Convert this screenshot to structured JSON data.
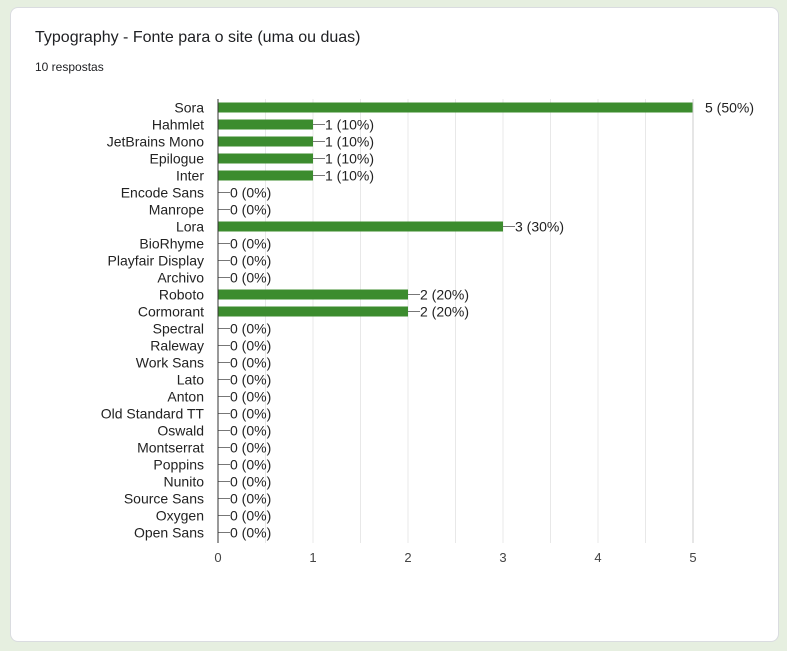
{
  "header": {
    "title": "Typography - Fonte para o site (uma ou duas)",
    "responses": "10 respostas"
  },
  "colors": {
    "bar": "#3c8c2e",
    "axis": "#333333",
    "grid": "#e8e8e8",
    "background": "#e6efe0"
  },
  "chart_data": {
    "type": "bar",
    "orientation": "horizontal",
    "categories": [
      "Sora",
      "Hahmlet",
      "JetBrains Mono",
      "Epilogue",
      "Inter",
      "Encode Sans",
      "Manrope",
      "Lora",
      "BioRhyme",
      "Playfair Display",
      "Archivo",
      "Roboto",
      "Cormorant",
      "Spectral",
      "Raleway",
      "Work Sans",
      "Lato",
      "Anton",
      "Old Standard TT",
      "Oswald",
      "Montserrat",
      "Poppins",
      "Nunito",
      "Source Sans",
      "Oxygen",
      "Open Sans"
    ],
    "values": [
      5,
      1,
      1,
      1,
      1,
      0,
      0,
      3,
      0,
      0,
      0,
      2,
      2,
      0,
      0,
      0,
      0,
      0,
      0,
      0,
      0,
      0,
      0,
      0,
      0,
      0
    ],
    "data_labels": [
      "5 (50%)",
      "1 (10%)",
      "1 (10%)",
      "1 (10%)",
      "1 (10%)",
      "0 (0%)",
      "0 (0%)",
      "3 (30%)",
      "0 (0%)",
      "0 (0%)",
      "0 (0%)",
      "2 (20%)",
      "2 (20%)",
      "0 (0%)",
      "0 (0%)",
      "0 (0%)",
      "0 (0%)",
      "0 (0%)",
      "0 (0%)",
      "0 (0%)",
      "0 (0%)",
      "0 (0%)",
      "0 (0%)",
      "0 (0%)",
      "0 (0%)",
      "0 (0%)"
    ],
    "x_ticks": [
      "0",
      "1",
      "2",
      "3",
      "4",
      "5"
    ],
    "xlim": [
      0,
      5
    ],
    "grid": true,
    "legend": "none"
  }
}
